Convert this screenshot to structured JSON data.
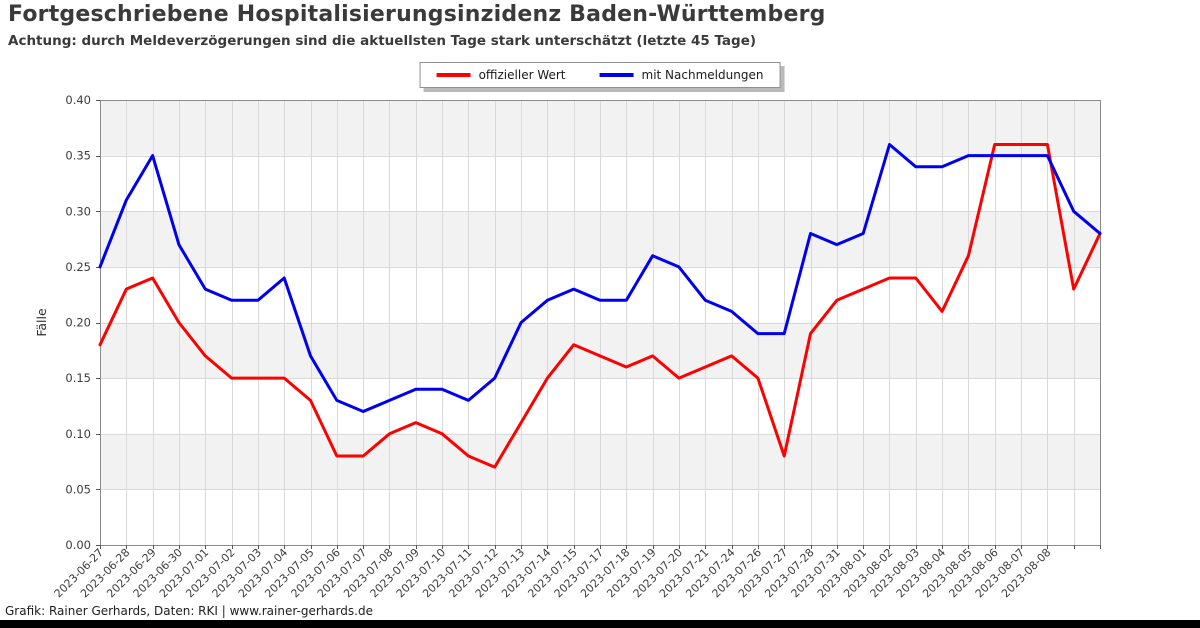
{
  "header": {
    "title": "Fortgeschriebene Hospitalisierungsinzidenz Baden-Württemberg",
    "subtitle": "Achtung: durch Meldeverzögerungen sind die aktuellsten Tage stark unterschätzt (letzte 45 Tage)"
  },
  "legend": {
    "entries": [
      {
        "label": "offizieller Wert",
        "color": "#ff0000"
      },
      {
        "label": "mit Nachmeldungen",
        "color": "#0000ee"
      }
    ]
  },
  "footer": {
    "credit": "Grafik: Rainer Gerhards, Daten: RKI | www.rainer-gerhards.de"
  },
  "chart_data": {
    "type": "line",
    "title": "Fortgeschriebene Hospitalisierungsinzidenz Baden-Württemberg",
    "ylabel": "Fälle",
    "xlabel": "",
    "ylim": [
      0.0,
      0.4
    ],
    "ytick_labels": [
      "0.00",
      "0.05",
      "0.10",
      "0.15",
      "0.20",
      "0.25",
      "0.30",
      "0.35",
      "0.40"
    ],
    "grid": true,
    "band_fill": "#f2f2f2",
    "gridline_color": "#d9d9d9",
    "frame_color": "#8a8a8a",
    "tick_text_color": "#3d3d3d",
    "legend_position": "top-center",
    "categories": [
      "2023-06-27",
      "2023-06-28",
      "2023-06-29",
      "2023-06-30",
      "2023-07-01",
      "2023-07-02",
      "2023-07-03",
      "2023-07-04",
      "2023-07-05",
      "2023-07-06",
      "2023-07-07",
      "2023-07-08",
      "2023-07-09",
      "2023-07-10",
      "2023-07-11",
      "2023-07-12",
      "2023-07-13",
      "2023-07-14",
      "2023-07-15",
      "2023-07-17",
      "2023-07-18",
      "2023-07-19",
      "2023-07-20",
      "2023-07-21",
      "2023-07-24",
      "2023-07-26",
      "2023-07-27",
      "2023-07-28",
      "2023-07-31",
      "2023-08-01",
      "2023-08-02",
      "2023-08-03",
      "2023-08-04",
      "2023-08-05",
      "2023-08-06",
      "2023-08-07",
      "2023-08-08",
      "",
      ""
    ],
    "series": [
      {
        "name": "offizieller Wert",
        "color": "#ff0000",
        "values": [
          0.18,
          0.23,
          0.24,
          0.2,
          0.17,
          0.15,
          0.15,
          0.15,
          0.13,
          0.08,
          0.08,
          0.1,
          0.11,
          0.1,
          0.08,
          0.07,
          0.11,
          0.15,
          0.18,
          0.17,
          0.16,
          0.17,
          0.15,
          0.16,
          0.17,
          0.15,
          0.08,
          0.19,
          0.22,
          0.23,
          0.24,
          0.24,
          0.21,
          0.26,
          0.36,
          0.36,
          0.36,
          0.23,
          0.28
        ]
      },
      {
        "name": "mit Nachmeldungen",
        "color": "#0000ee",
        "values": [
          0.25,
          0.31,
          0.35,
          0.27,
          0.23,
          0.22,
          0.22,
          0.24,
          0.17,
          0.13,
          0.12,
          0.13,
          0.14,
          0.14,
          0.13,
          0.15,
          0.2,
          0.22,
          0.23,
          0.22,
          0.22,
          0.26,
          0.25,
          0.22,
          0.21,
          0.19,
          0.19,
          0.28,
          0.27,
          0.28,
          0.36,
          0.34,
          0.34,
          0.35,
          0.35,
          0.35,
          0.35,
          0.3,
          0.28
        ]
      }
    ]
  }
}
